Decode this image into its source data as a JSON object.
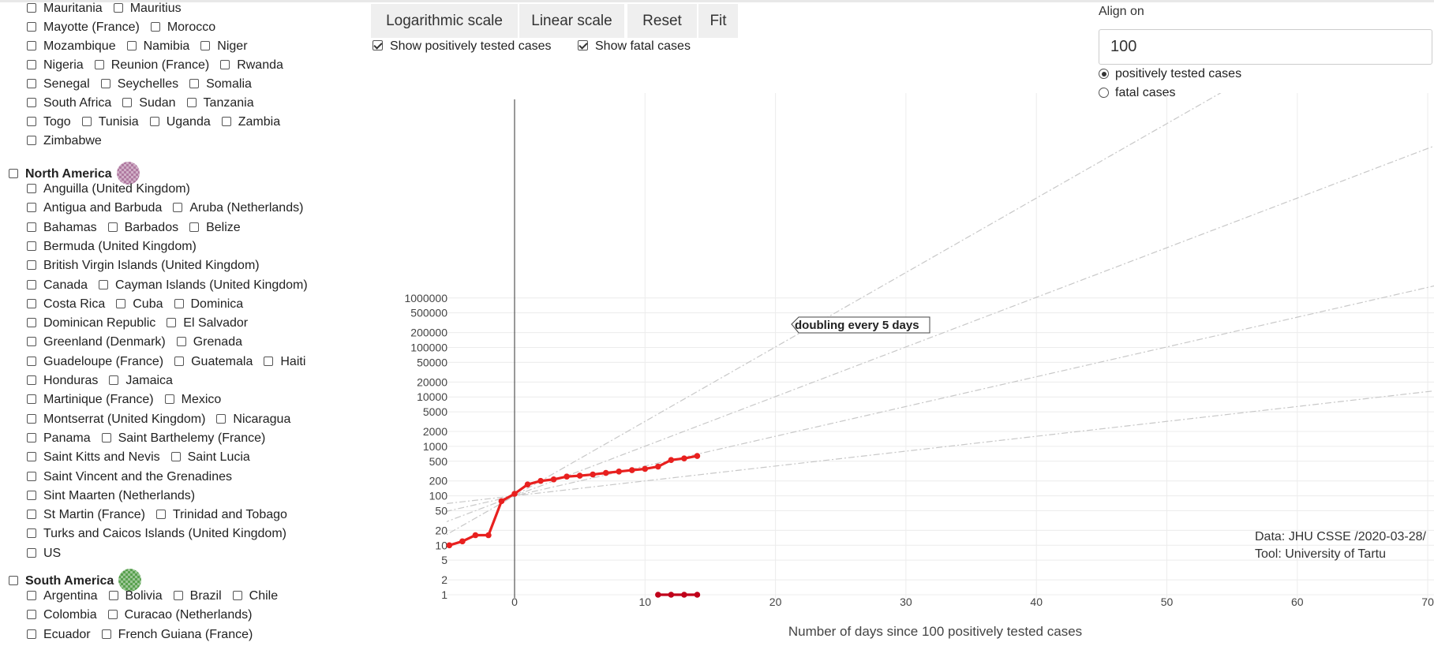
{
  "sidebar": {
    "africa_tail": [
      {
        "top": 8,
        "items": [
          "Mauritania",
          "Mauritius"
        ]
      },
      {
        "top": 32,
        "items": [
          "Mayotte (France)",
          "Morocco"
        ]
      },
      {
        "top": 56,
        "items": [
          "Mozambique",
          "Namibia",
          "Niger"
        ]
      },
      {
        "top": 80,
        "items": [
          "Nigeria",
          "Reunion (France)",
          "Rwanda"
        ]
      },
      {
        "top": 104,
        "items": [
          "Senegal",
          "Seychelles",
          "Somalia"
        ]
      },
      {
        "top": 128,
        "items": [
          "South Africa",
          "Sudan",
          "Tanzania"
        ]
      },
      {
        "top": 152,
        "items": [
          "Togo",
          "Tunisia",
          "Uganda",
          "Zambia"
        ]
      },
      {
        "top": 176,
        "items": [
          "Zimbabwe"
        ]
      }
    ],
    "north_america": {
      "label": "North America",
      "color": "#b07aa1",
      "rows": [
        [
          "Anguilla (United Kingdom)"
        ],
        [
          "Antigua and Barbuda",
          "Aruba (Netherlands)"
        ],
        [
          "Bahamas",
          "Barbados",
          "Belize"
        ],
        [
          "Bermuda (United Kingdom)"
        ],
        [
          "British Virgin Islands (United Kingdom)"
        ],
        [
          "Canada",
          "Cayman Islands (United Kingdom)"
        ],
        [
          "Costa Rica",
          "Cuba",
          "Dominica"
        ],
        [
          "Dominican Republic",
          "El Salvador"
        ],
        [
          "Greenland (Denmark)",
          "Grenada"
        ],
        [
          "Guadeloupe (France)",
          "Guatemala",
          "Haiti"
        ],
        [
          "Honduras",
          "Jamaica"
        ],
        [
          "Martinique (France)",
          "Mexico"
        ],
        [
          "Montserrat (United Kingdom)",
          "Nicaragua"
        ],
        [
          "Panama",
          "Saint Barthelemy (France)"
        ],
        [
          "Saint Kitts and Nevis",
          "Saint Lucia"
        ],
        [
          "Saint Vincent and the Grenadines"
        ],
        [
          "Sint Maarten (Netherlands)"
        ],
        [
          "St Martin (France)",
          "Trinidad and Tobago"
        ],
        [
          "Turks and Caicos Islands (United Kingdom)"
        ],
        [
          "US"
        ]
      ]
    },
    "south_america": {
      "label": "South America",
      "color": "#59a14f",
      "rows": [
        [
          "Argentina",
          "Bolivia",
          "Brazil",
          "Chile"
        ],
        [
          "Colombia",
          "Curacao (Netherlands)"
        ],
        [
          "Ecuador",
          "French Guiana (France)"
        ]
      ]
    }
  },
  "toolbar": {
    "log_label": "Logarithmic scale",
    "linear_label": "Linear scale",
    "reset_label": "Reset",
    "fit_label": "Fit",
    "show_positive_label": "Show positively tested cases",
    "show_fatal_label": "Show fatal cases"
  },
  "align": {
    "label": "Align on",
    "value": "100",
    "option_positive": "positively tested cases",
    "option_fatal": "fatal cases",
    "selected": "positively tested cases"
  },
  "chart_data": {
    "type": "line",
    "scale": "log",
    "xlabel": "Number of days since 100 positively tested cases",
    "xlim": [
      -5,
      70
    ],
    "ylim": [
      1,
      1000000
    ],
    "x_ticks": [
      0,
      10,
      20,
      30,
      40,
      50,
      60,
      70
    ],
    "y_ticks": [
      1,
      2,
      5,
      10,
      20,
      50,
      100,
      200,
      500,
      1000,
      2000,
      5000,
      10000,
      20000,
      50000,
      100000,
      200000,
      500000,
      1000000
    ],
    "grid": true,
    "series": [
      {
        "color": "#e8201f",
        "x": [
          -5,
          -4,
          -3,
          -2,
          -1,
          0,
          1,
          2,
          3,
          4,
          5,
          6,
          7,
          8,
          9,
          10,
          11,
          12,
          13,
          14
        ],
        "y": [
          10,
          12,
          16,
          16,
          78,
          110,
          170,
          200,
          215,
          245,
          255,
          270,
          290,
          310,
          330,
          350,
          390,
          530,
          570,
          640
        ]
      },
      {
        "color": "#c0001a",
        "x": [
          11,
          12,
          13,
          14
        ],
        "y": [
          1,
          1,
          1,
          1
        ]
      }
    ],
    "doubling_lines": [
      2,
      3,
      5,
      10
    ],
    "annotation": "doubling every 5 days"
  },
  "credit": {
    "line1": "Data: JHU CSSE /2020-03-28/",
    "line2": "Tool: University of Tartu"
  }
}
